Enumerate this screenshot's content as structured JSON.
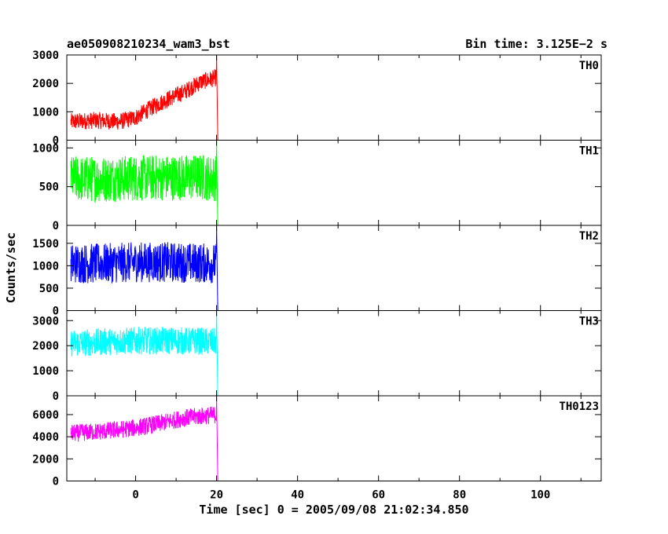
{
  "header": {
    "title": "ae050908210234_wam3_bst",
    "bin_time": "Bin time: 3.125E−2 s"
  },
  "chart_data": {
    "type": "line",
    "xlabel": "Time [sec] 0 = 2005/09/08 21:02:34.850",
    "ylabel": "Counts/sec",
    "xlim": [
      -17,
      115
    ],
    "x_ticks": [
      0,
      20,
      40,
      60,
      80,
      100
    ],
    "grid": false,
    "panels": [
      {
        "name": "TH0",
        "color": "#ff0000",
        "ylim": [
          0,
          3000
        ],
        "y_ticks": [
          0,
          1000,
          2000,
          3000
        ],
        "series": {
          "x": [
            -16,
            -10,
            -4,
            0,
            4,
            8,
            12,
            16,
            20,
            20.3,
            112
          ],
          "y": [
            650,
            700,
            650,
            800,
            1150,
            1450,
            1700,
            2050,
            2200,
            0,
            0
          ],
          "noise": 300
        }
      },
      {
        "name": "TH1",
        "color": "#00ff00",
        "ylim": [
          0,
          1100
        ],
        "y_ticks": [
          0,
          500,
          1000
        ],
        "series": {
          "x": [
            -16,
            -8,
            0,
            8,
            16,
            20,
            20.3,
            112
          ],
          "y": [
            600,
            600,
            610,
            620,
            620,
            610,
            0,
            0
          ],
          "noise": 300
        }
      },
      {
        "name": "TH2",
        "color": "#0000ff",
        "ylim": [
          0,
          1900
        ],
        "y_ticks": [
          0,
          500,
          1000,
          1500
        ],
        "series": {
          "x": [
            -16,
            -8,
            0,
            8,
            16,
            20,
            20.3,
            112
          ],
          "y": [
            1050,
            1050,
            1080,
            1080,
            1060,
            1050,
            0,
            0
          ],
          "noise": 450
        }
      },
      {
        "name": "TH3",
        "color": "#00ffff",
        "ylim": [
          0,
          3400
        ],
        "y_ticks": [
          0,
          1000,
          2000,
          3000
        ],
        "series": {
          "x": [
            -16,
            -8,
            0,
            8,
            16,
            20,
            20.3,
            112
          ],
          "y": [
            2100,
            2150,
            2200,
            2200,
            2180,
            2150,
            0,
            0
          ],
          "noise": 550
        }
      },
      {
        "name": "TH0123",
        "color": "#ff00ff",
        "ylim": [
          0,
          7700
        ],
        "y_ticks": [
          0,
          2000,
          4000,
          6000
        ],
        "series": {
          "x": [
            -16,
            -8,
            0,
            6,
            12,
            20,
            20.3,
            112
          ],
          "y": [
            4300,
            4500,
            4800,
            5200,
            5700,
            6000,
            0,
            0
          ],
          "noise": 800
        }
      }
    ]
  }
}
